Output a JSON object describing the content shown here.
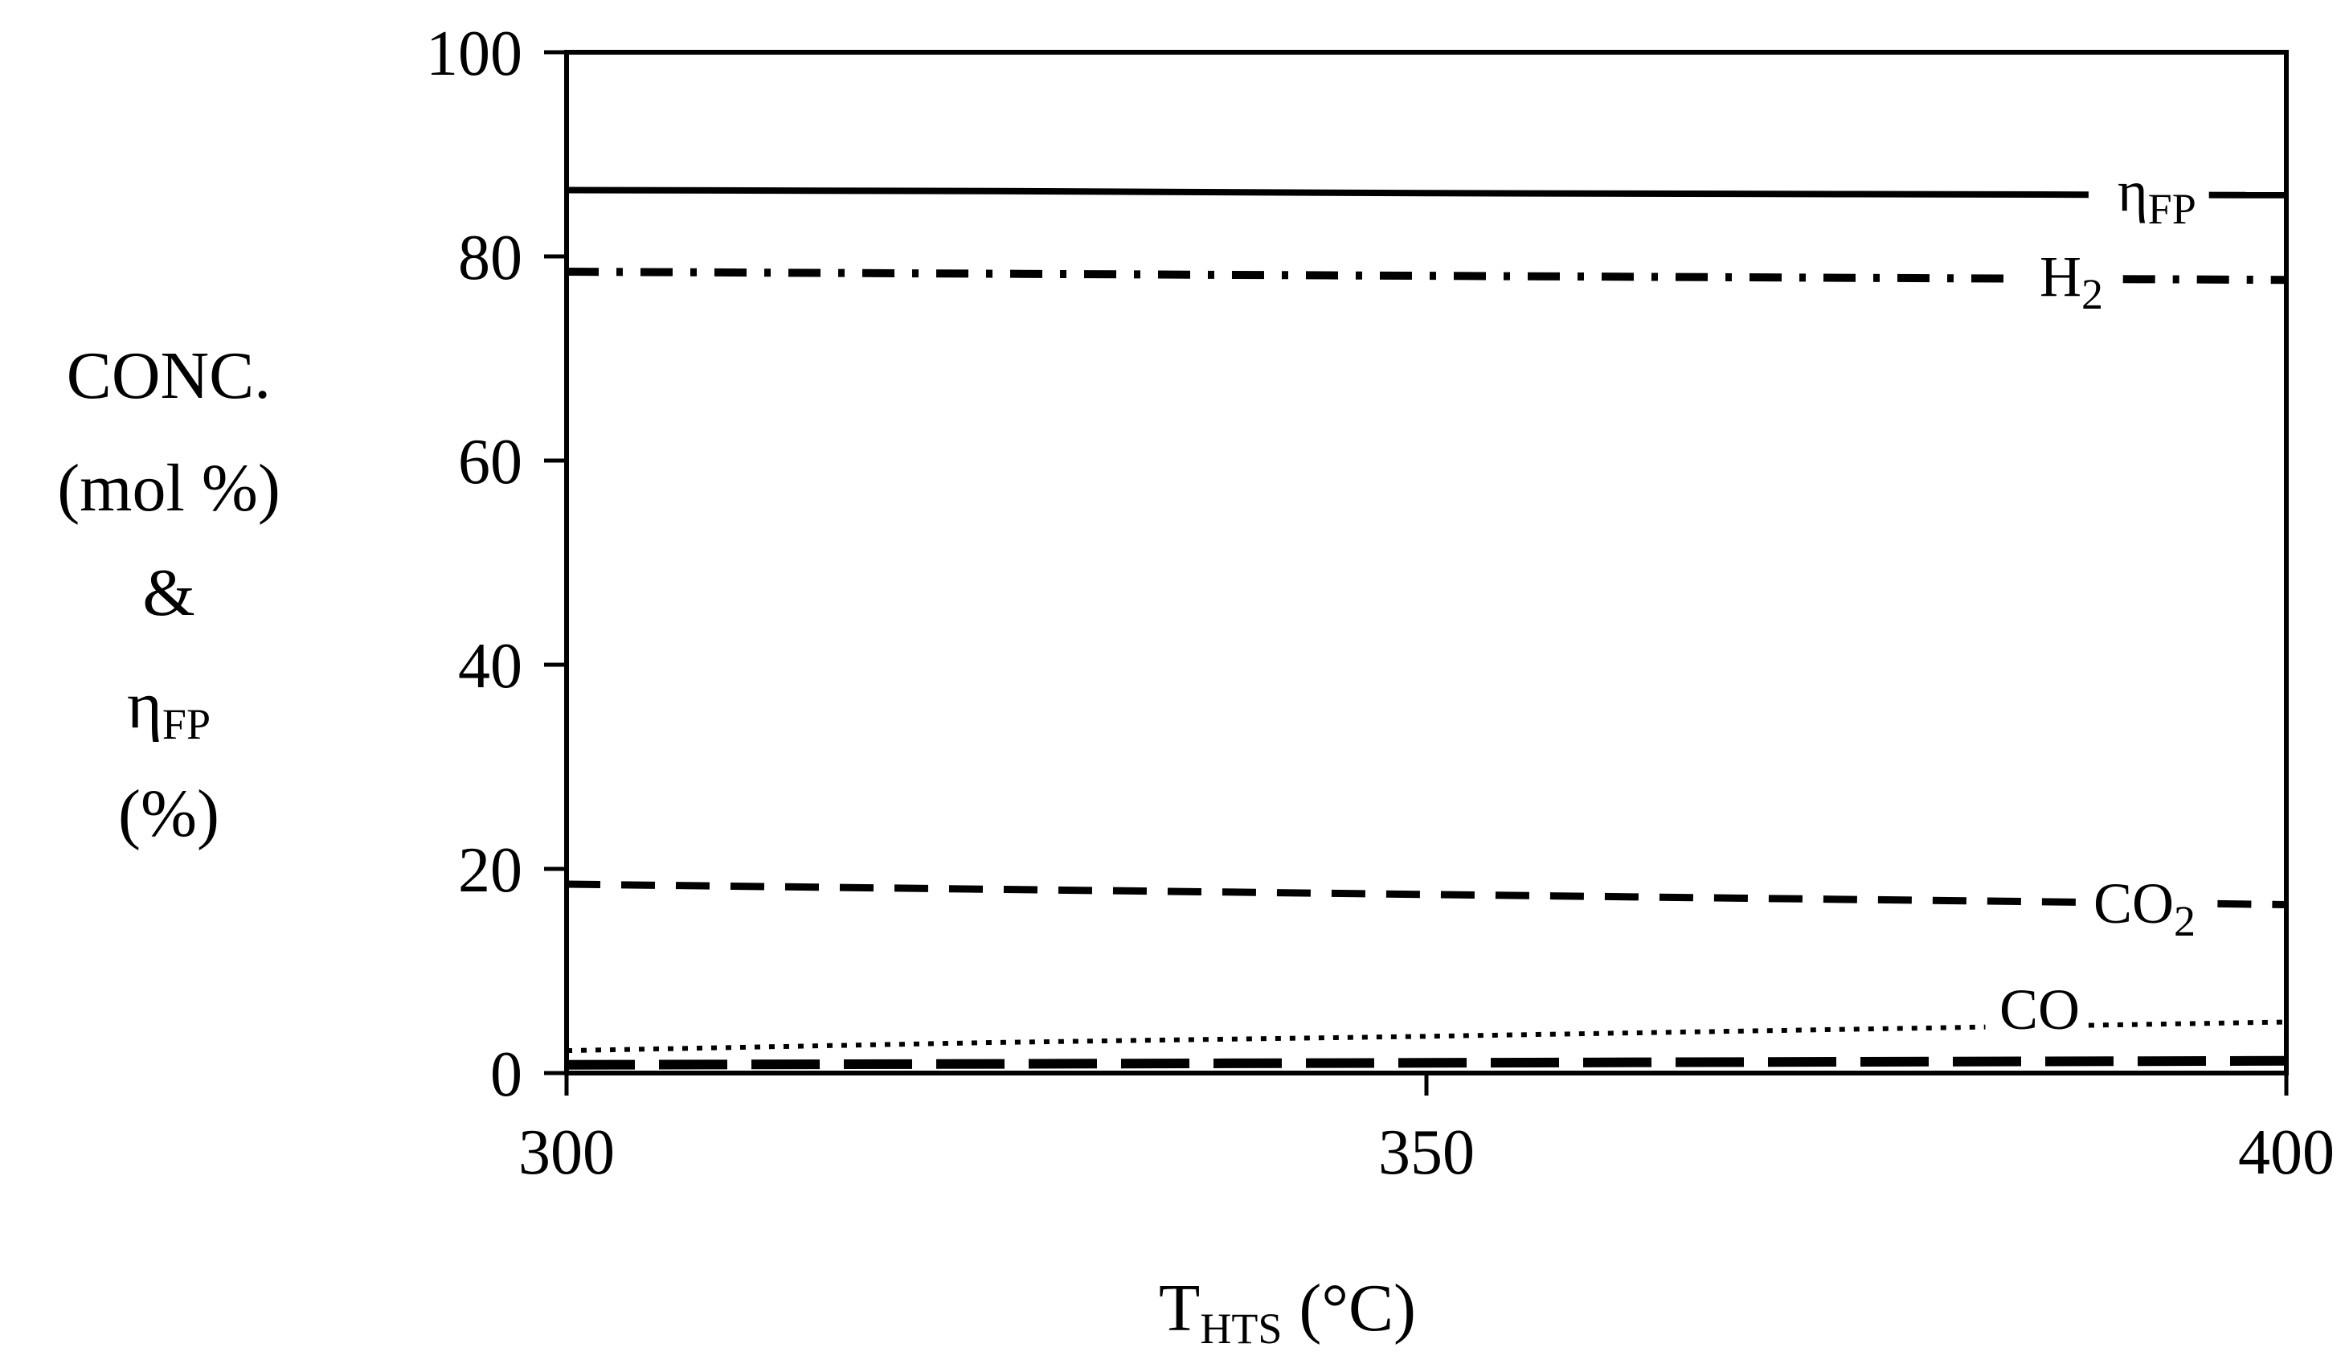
{
  "chart_data": {
    "type": "line",
    "xlabel": "T",
    "xlabel_sub": "HTS",
    "xlabel_unit": " (°C)",
    "ylabel_lines": [
      "CONC.",
      "(mol %)",
      "&"
    ],
    "ylabel_eta": "η",
    "ylabel_eta_sub": "FP",
    "ylabel_last": "(%)",
    "xlim": [
      300,
      400
    ],
    "ylim": [
      0,
      100
    ],
    "xticks": [
      "300",
      "350",
      "400"
    ],
    "yticks": [
      "0",
      "20",
      "40",
      "60",
      "80",
      "100"
    ],
    "grid": false,
    "legend": "inline labels at right end of lines",
    "x": [
      300,
      325,
      350,
      375,
      400
    ],
    "series": [
      {
        "name": "ηFP",
        "label_main": "η",
        "label_sub": "FP",
        "style": "solid",
        "values": [
          86.5,
          86.4,
          86.2,
          86.1,
          86.0
        ]
      },
      {
        "name": "H2",
        "label_main": "H",
        "label_sub": "2",
        "style": "dashdot",
        "values": [
          78.5,
          78.3,
          78.1,
          77.9,
          77.7
        ]
      },
      {
        "name": "CO2",
        "label_main": "CO",
        "label_sub": "2",
        "style": "dash",
        "values": [
          18.5,
          18.0,
          17.5,
          17.0,
          16.5
        ]
      },
      {
        "name": "CO",
        "label_main": "CO",
        "label_sub": "",
        "style": "dot",
        "values": [
          2.2,
          3.0,
          3.6,
          4.3,
          5.0
        ]
      },
      {
        "name": "",
        "label_main": "",
        "label_sub": "",
        "style": "longdash",
        "values": [
          0.8,
          0.9,
          1.0,
          1.1,
          1.2
        ]
      }
    ]
  }
}
